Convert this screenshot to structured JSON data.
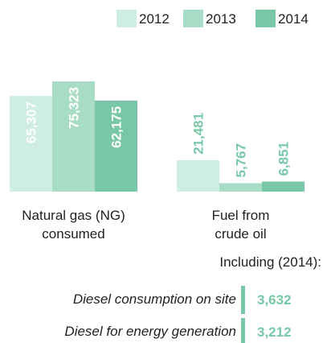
{
  "chart_data": {
    "type": "bar",
    "categories": [
      "Natural gas (NG) consumed",
      "Fuel from crude oil"
    ],
    "series": [
      {
        "name": "2012",
        "color": "#cdeee0",
        "values": [
          65307,
          21481
        ],
        "value_labels": [
          "65,307",
          "21,481"
        ]
      },
      {
        "name": "2013",
        "color": "#a9dcc6",
        "values": [
          75323,
          5767
        ],
        "value_labels": [
          "75,323",
          "5,767"
        ]
      },
      {
        "name": "2014",
        "color": "#78c8a7",
        "values": [
          62175,
          6851
        ],
        "value_labels": [
          "62,175",
          "6,851"
        ]
      }
    ],
    "legend": "top-right",
    "annotation": "Including (2014):",
    "breakdown": [
      {
        "label": "Diesel consumption on site",
        "value": 3632,
        "value_label": "3,632"
      },
      {
        "label": "Diesel for energy generation",
        "value": 3212,
        "value_label": "3,212"
      }
    ]
  }
}
